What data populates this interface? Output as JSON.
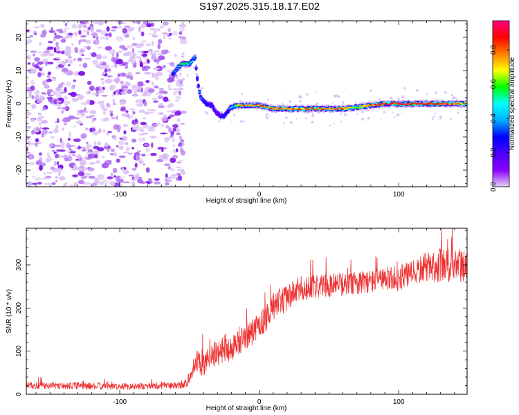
{
  "title": "S197.2025.315.18.17.E02",
  "chart_data": [
    {
      "type": "heatmap",
      "xlabel": "Height of straight line (km)",
      "ylabel": "Frequency (Hz)",
      "xlim": [
        -167,
        149
      ],
      "ylim": [
        -25,
        25
      ],
      "xticks": [
        -100,
        0,
        100
      ],
      "yticks": [
        -20,
        -10,
        0,
        10,
        20
      ],
      "colorbar": {
        "label": "Normalized spectral amplitude",
        "range": [
          0,
          0.97
        ],
        "ticks": [
          "0.0",
          "0.2",
          "0.4",
          "0.6",
          "0.8"
        ],
        "tick_values": [
          0.0,
          0.2,
          0.4,
          0.6,
          0.8
        ],
        "colormap": [
          "#e6d0f4",
          "#8b00ff",
          "#4b00ff",
          "#0000ff",
          "#00b0ff",
          "#00ffff",
          "#00ff00",
          "#ffff00",
          "#ff8000",
          "#ff0000",
          "#ff0080"
        ]
      },
      "noise_region_x": [
        -167,
        -60
      ],
      "ridge": {
        "x": [
          -62,
          -56,
          -50,
          -46,
          -44,
          -42,
          -40,
          -38,
          -34,
          -30,
          -26,
          -22,
          -20,
          -16,
          -10,
          0,
          10,
          20,
          40,
          60,
          70,
          80,
          90,
          100,
          120,
          140,
          149
        ],
        "y": [
          9,
          12,
          12,
          14,
          6,
          2,
          1,
          0,
          -0.5,
          -3,
          -4,
          -2,
          -1,
          -0.5,
          -0.5,
          -0.5,
          -1.5,
          -1.5,
          -1.5,
          -1.5,
          -1,
          -0.5,
          0,
          0,
          0,
          0,
          0
        ],
        "amplitude": [
          0.3,
          0.55,
          0.6,
          0.4,
          0.3,
          0.5,
          0.3,
          0.3,
          0.25,
          0.2,
          0.3,
          0.3,
          0.45,
          0.65,
          0.85,
          0.85,
          0.8,
          0.8,
          0.85,
          0.85,
          0.7,
          0.85,
          0.9,
          0.92,
          0.92,
          0.85,
          0.7
        ]
      }
    },
    {
      "type": "line",
      "xlabel": "Height of straight line (km)",
      "ylabel": "SNR (10 * v/v)",
      "xlim": [
        -167,
        149
      ],
      "ylim": [
        0,
        385
      ],
      "xticks": [
        -100,
        0,
        100
      ],
      "yticks": [
        0,
        100,
        200,
        300
      ],
      "series": [
        {
          "name": "SNR",
          "color": "#ee3333",
          "x": [
            -167,
            -140,
            -120,
            -100,
            -80,
            -60,
            -52,
            -48,
            -45,
            -40,
            -35,
            -30,
            -25,
            -20,
            -15,
            -10,
            -5,
            0,
            5,
            10,
            15,
            20,
            25,
            30,
            40,
            60,
            80,
            100,
            110,
            120,
            130,
            140,
            149
          ],
          "mean": [
            20,
            20,
            19,
            18,
            19,
            20,
            25,
            55,
            80,
            65,
            95,
            90,
            110,
            105,
            125,
            130,
            145,
            160,
            180,
            200,
            215,
            225,
            235,
            245,
            250,
            255,
            262,
            270,
            280,
            295,
            300,
            295,
            300
          ],
          "spread": [
            15,
            15,
            15,
            14,
            15,
            15,
            20,
            40,
            45,
            50,
            55,
            55,
            60,
            60,
            60,
            65,
            60,
            60,
            60,
            60,
            60,
            60,
            55,
            55,
            50,
            50,
            50,
            55,
            55,
            65,
            75,
            75,
            75
          ]
        }
      ]
    }
  ]
}
